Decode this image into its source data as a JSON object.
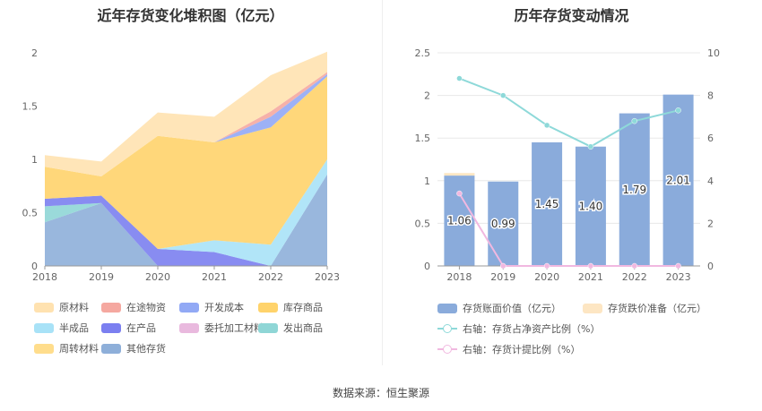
{
  "left_title": "近年存货变化堆积图（亿元）",
  "right_title": "历年存货变动情况",
  "source": "数据来源：恒生聚源",
  "chart_data": [
    {
      "type": "area",
      "stacked": true,
      "title": "近年存货变化堆积图（亿元）",
      "x": [
        "2018",
        "2019",
        "2020",
        "2021",
        "2022",
        "2023"
      ],
      "y_ticks": [
        "0",
        "0.5",
        "1",
        "1.5",
        "2"
      ],
      "ylim": [
        0,
        2
      ],
      "grid": false,
      "legend_position": "bottom",
      "series": [
        {
          "name": "其他存货",
          "color": "#8eafd9",
          "values": [
            0.41,
            0.59,
            0.0,
            0.0,
            0.0,
            0.86
          ]
        },
        {
          "name": "发出商品",
          "color": "#8fd6d6",
          "values": [
            0.15,
            0.0,
            0.0,
            0.0,
            0.0,
            0.0
          ]
        },
        {
          "name": "委托加工材料",
          "color": "#e9b9de",
          "values": [
            0.0,
            0.0,
            0.0,
            0.0,
            0.0,
            0.0
          ]
        },
        {
          "name": "在产品",
          "color": "#7b7ff0",
          "values": [
            0.07,
            0.07,
            0.16,
            0.13,
            0.0,
            0.0
          ]
        },
        {
          "name": "半成品",
          "color": "#a8e2f7",
          "values": [
            0.0,
            0.0,
            0.0,
            0.11,
            0.2,
            0.14
          ]
        },
        {
          "name": "库存商品",
          "color": "#ffd36b",
          "values": [
            0.3,
            0.18,
            1.06,
            0.92,
            1.1,
            0.78
          ]
        },
        {
          "name": "开发成本",
          "color": "#92a9f5",
          "values": [
            0.0,
            0.0,
            0.0,
            0.0,
            0.1,
            0.02
          ]
        },
        {
          "name": "在途物资",
          "color": "#f5a8a0",
          "values": [
            0.0,
            0.0,
            0.0,
            0.0,
            0.05,
            0.02
          ]
        },
        {
          "name": "原材料",
          "color": "#ffe2b0",
          "values": [
            0.11,
            0.14,
            0.22,
            0.24,
            0.34,
            0.19
          ]
        },
        {
          "name": "周转材料",
          "color": "#ffdd8c",
          "values": [
            0.0,
            0.0,
            0.0,
            0.0,
            0.0,
            0.0
          ]
        }
      ],
      "legend_order": [
        "原材料",
        "在途物资",
        "开发成本",
        "库存商品",
        "半成品",
        "在产品",
        "委托加工材料",
        "发出商品",
        "周转材料",
        "其他存货"
      ]
    },
    {
      "type": "bar",
      "title": "历年存货变动情况",
      "categories": [
        "2018",
        "2019",
        "2020",
        "2021",
        "2022",
        "2023"
      ],
      "y_left_ticks": [
        "0",
        "0.5",
        "1",
        "1.5",
        "2",
        "2.5"
      ],
      "y_left_range": [
        0,
        2.5
      ],
      "y_right_ticks": [
        "0",
        "2",
        "4",
        "6",
        "8",
        "10"
      ],
      "y_right_range": [
        0,
        10
      ],
      "grid": true,
      "legend_position": "bottom",
      "series": [
        {
          "name": "存货账面价值（亿元）",
          "kind": "bar",
          "axis": "left",
          "color": "#8aabdb",
          "values": [
            1.06,
            0.99,
            1.45,
            1.4,
            1.79,
            2.01
          ],
          "labels": [
            "1.06",
            "0.99",
            "1.45",
            "1.40",
            "1.79",
            "2.01"
          ]
        },
        {
          "name": "存货跌价准备（亿元）",
          "kind": "bar-stack",
          "axis": "left",
          "color": "#fde6c3",
          "values": [
            0.03,
            0,
            0,
            0,
            0,
            0
          ]
        },
        {
          "name": "右轴：存货占净资产比例（%）",
          "kind": "line",
          "axis": "right",
          "color": "#8ed9d9",
          "values": [
            8.8,
            8.0,
            6.6,
            5.6,
            6.8,
            7.3
          ]
        },
        {
          "name": "右轴：存货计提比例（%）",
          "kind": "line",
          "axis": "right",
          "color": "#f1b8e0",
          "values": [
            3.4,
            0,
            0,
            0,
            0,
            0
          ]
        }
      ]
    }
  ]
}
